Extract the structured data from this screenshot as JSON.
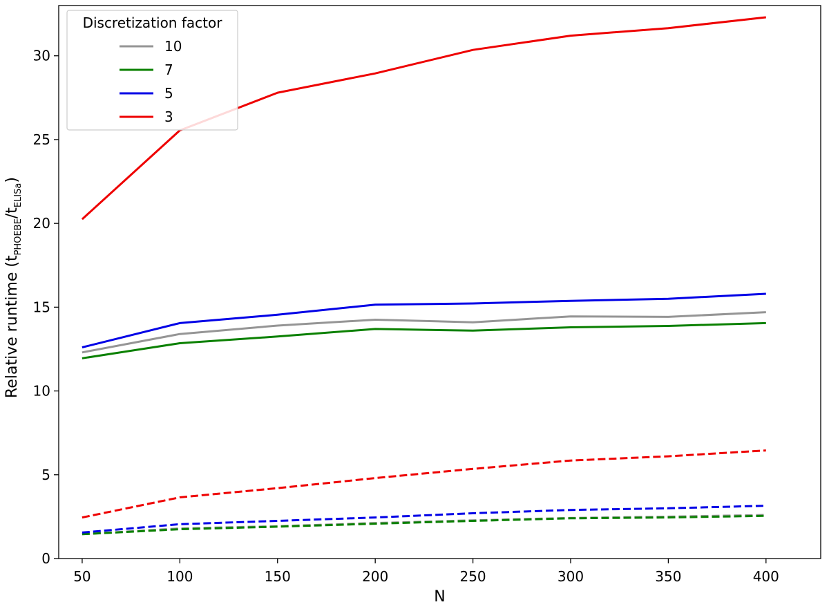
{
  "chart_data": {
    "type": "line",
    "xlabel": "N",
    "ylabel": {
      "prefix": "Relative runtime (t",
      "sub1": "PHOEBE",
      "middle": "/t",
      "sub2": "ELISa",
      "suffix": ")"
    },
    "xlim": [
      38,
      428
    ],
    "ylim": [
      0,
      33
    ],
    "x_ticks": [
      50,
      100,
      150,
      200,
      250,
      300,
      350,
      400
    ],
    "y_ticks": [
      0,
      5,
      10,
      15,
      20,
      25,
      30
    ],
    "x": [
      50,
      100,
      150,
      200,
      250,
      300,
      350,
      400
    ],
    "legend": {
      "title": "Discretization factor",
      "location": "top-left"
    },
    "series": [
      {
        "name": "10",
        "color": "#959595",
        "style": "solid",
        "values": [
          12.3,
          13.4,
          13.9,
          14.25,
          14.1,
          14.45,
          14.42,
          14.7
        ]
      },
      {
        "name": "7",
        "color": "#0a8000",
        "style": "solid",
        "values": [
          11.95,
          12.85,
          13.25,
          13.7,
          13.6,
          13.8,
          13.88,
          14.05
        ]
      },
      {
        "name": "5",
        "color": "#0000e6",
        "style": "solid",
        "values": [
          12.6,
          14.05,
          14.55,
          15.15,
          15.22,
          15.38,
          15.5,
          15.8
        ]
      },
      {
        "name": "3",
        "color": "#ee0000",
        "style": "solid",
        "values": [
          20.25,
          25.55,
          27.8,
          28.95,
          30.35,
          31.2,
          31.65,
          32.3
        ]
      },
      {
        "name": "",
        "color": "#959595",
        "style": "dashed",
        "values": [
          1.45,
          1.8,
          1.93,
          2.12,
          2.28,
          2.42,
          2.5,
          2.6
        ]
      },
      {
        "name": "",
        "color": "#0a8000",
        "style": "dashed",
        "values": [
          1.45,
          1.75,
          1.9,
          2.08,
          2.25,
          2.4,
          2.45,
          2.55
        ]
      },
      {
        "name": "",
        "color": "#0000e6",
        "style": "dashed",
        "values": [
          1.55,
          2.05,
          2.25,
          2.45,
          2.7,
          2.9,
          3.0,
          3.15
        ]
      },
      {
        "name": "",
        "color": "#ee0000",
        "style": "dashed",
        "values": [
          2.45,
          3.65,
          4.2,
          4.8,
          5.35,
          5.85,
          6.1,
          6.45
        ]
      }
    ]
  }
}
